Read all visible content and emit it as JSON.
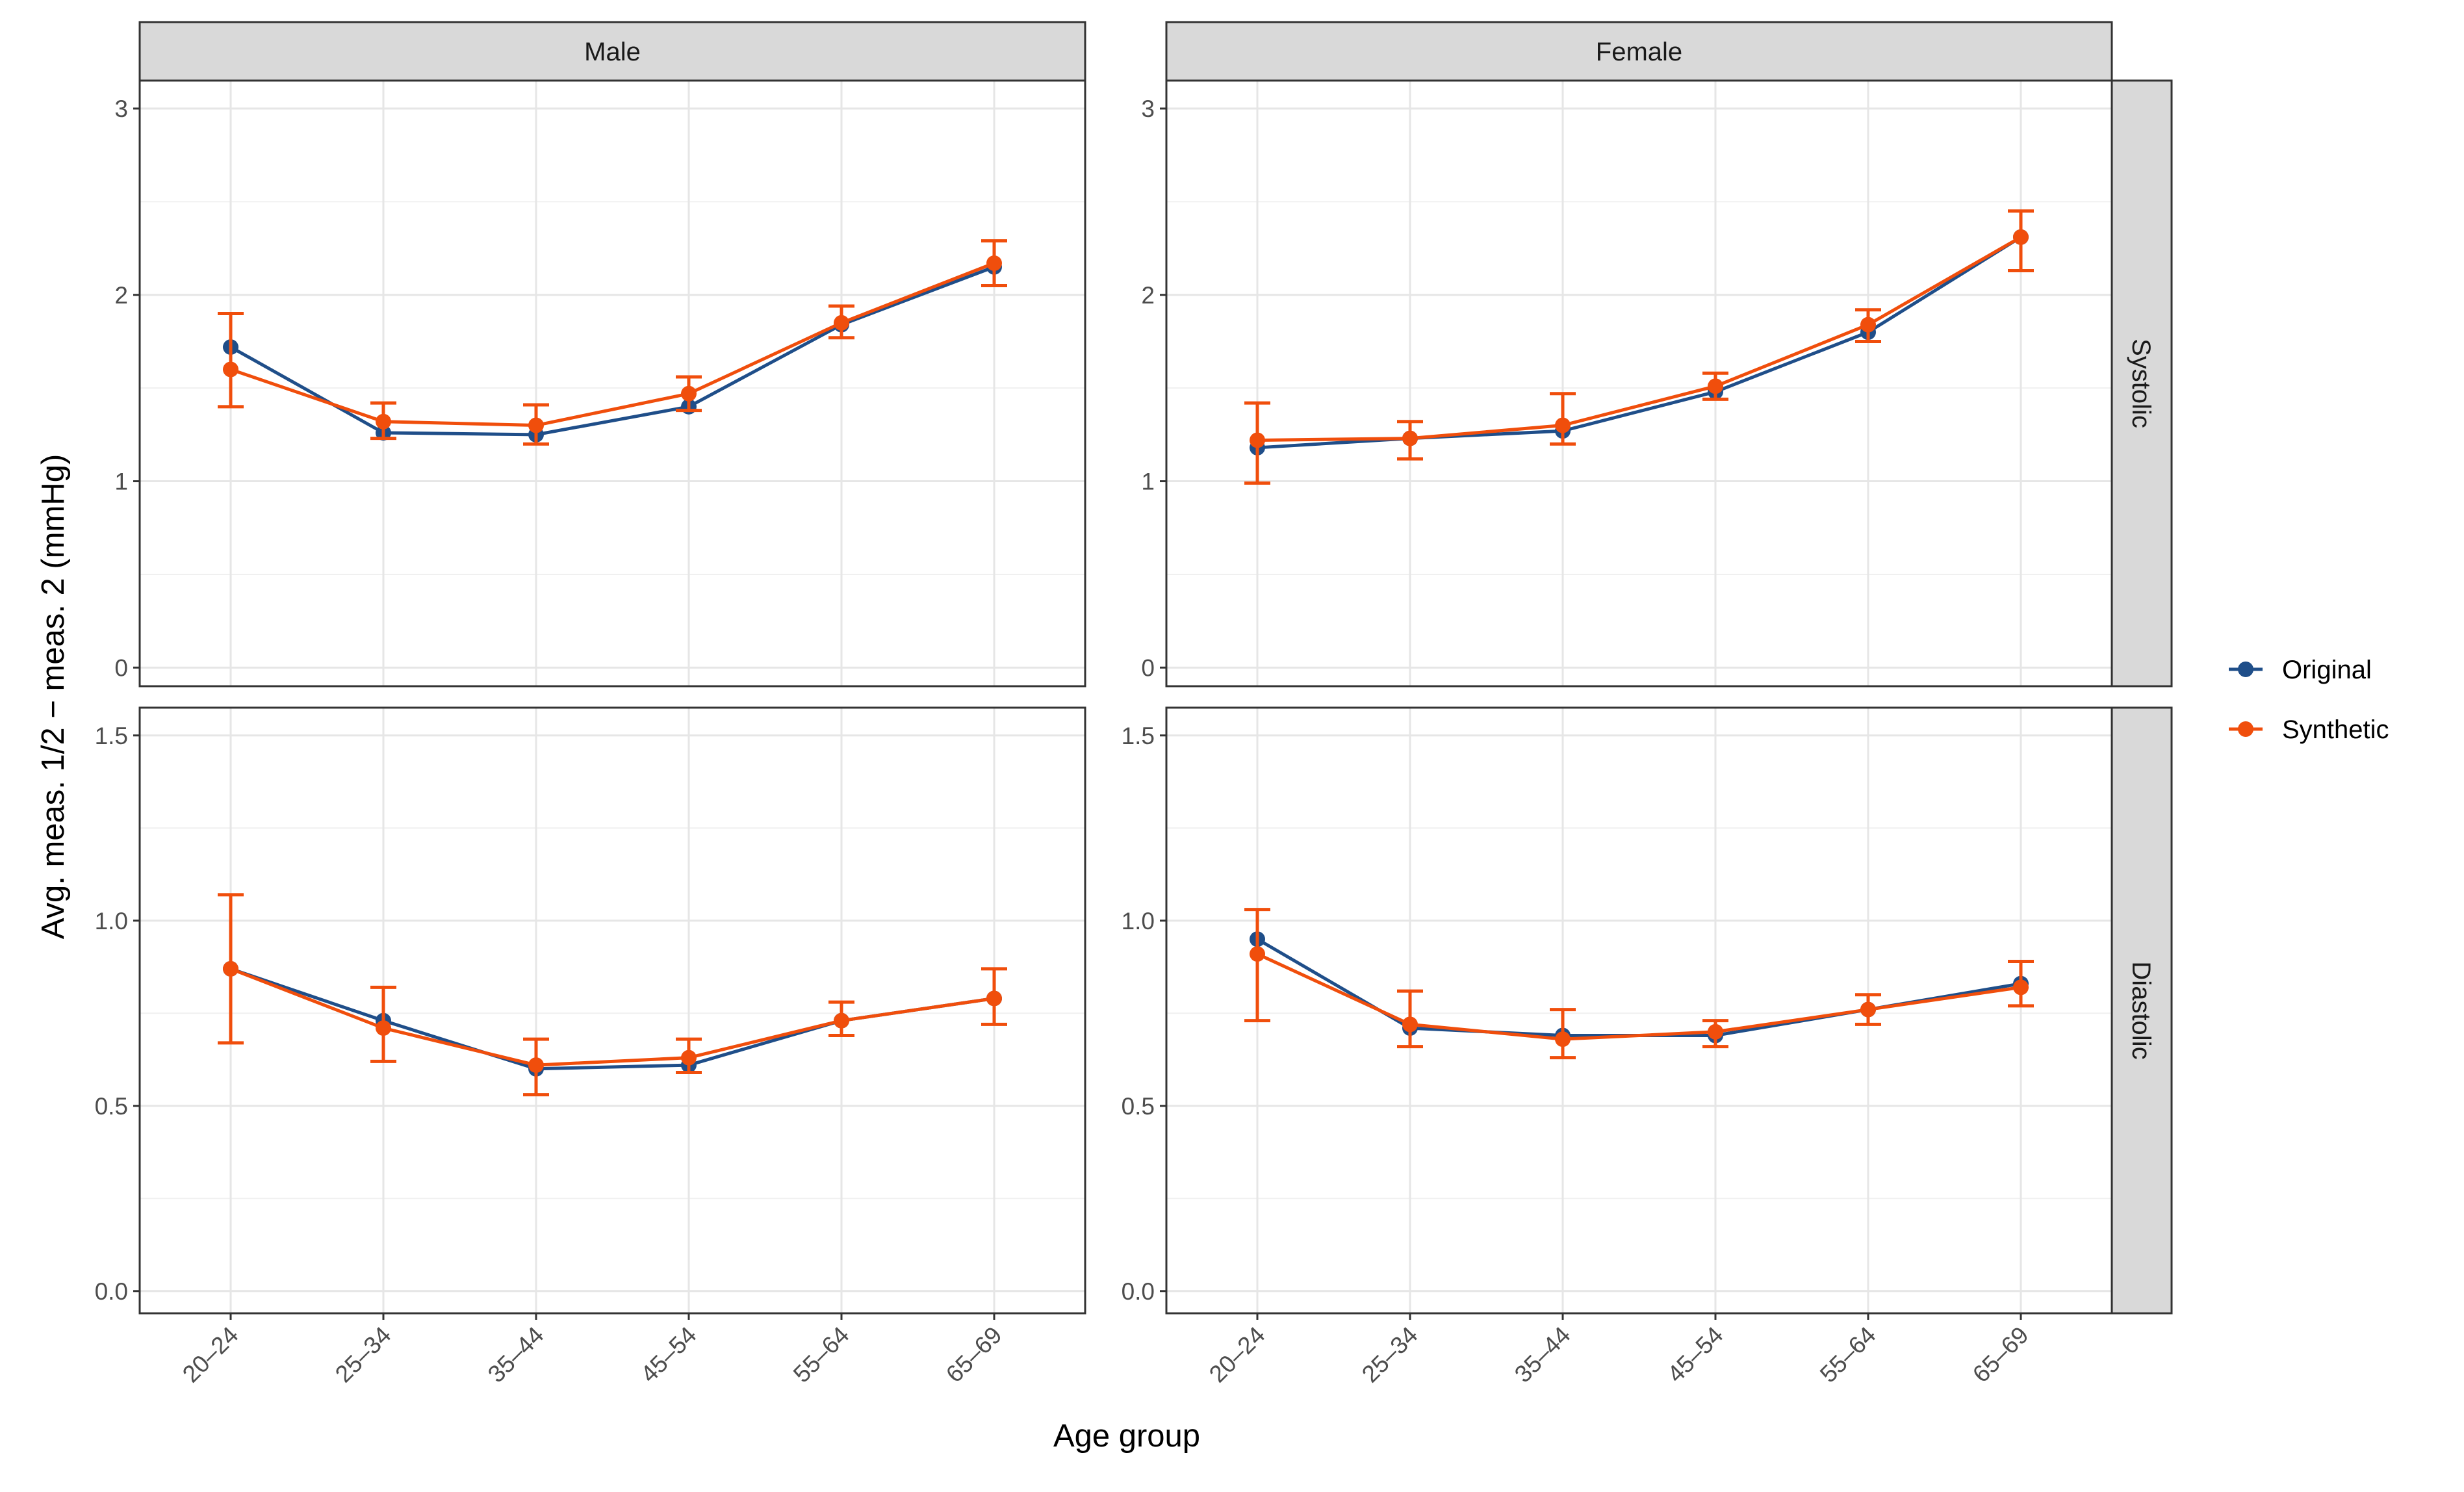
{
  "chart_data": {
    "type": "line",
    "title": "",
    "xlabel": "Age group",
    "ylabel": "Avg. meas. 1/2 − meas. 2 (mmHg)",
    "categories": [
      "20–24",
      "25–34",
      "35–44",
      "45–54",
      "55–64",
      "65–69"
    ],
    "columns": [
      "Male",
      "Female"
    ],
    "rows": [
      "Systolic",
      "Diastolic"
    ],
    "legend": {
      "position": "right",
      "entries": [
        {
          "name": "Original",
          "color": "#1f4e89"
        },
        {
          "name": "Synthetic",
          "color": "#f04e0c"
        }
      ]
    },
    "grid": true,
    "row_axes": [
      {
        "row": "Systolic",
        "ylim": [
          -0.1,
          3.15
        ],
        "ticks": [
          "0",
          "1",
          "2",
          "3"
        ],
        "tick_values": [
          0,
          1,
          2,
          3
        ]
      },
      {
        "row": "Diastolic",
        "ylim": [
          -0.06,
          1.575
        ],
        "ticks": [
          "0.0",
          "0.5",
          "1.0",
          "1.5"
        ],
        "tick_values": [
          0,
          0.5,
          1.0,
          1.5
        ]
      }
    ],
    "panels": [
      {
        "column": "Male",
        "row": "Systolic",
        "series": [
          {
            "name": "Original",
            "values": [
              1.72,
              1.26,
              1.25,
              1.4,
              1.84,
              2.15
            ]
          },
          {
            "name": "Synthetic",
            "values": [
              1.6,
              1.32,
              1.3,
              1.47,
              1.85,
              2.17
            ],
            "error_low": [
              1.4,
              1.23,
              1.2,
              1.38,
              1.77,
              2.05
            ],
            "error_high": [
              1.9,
              1.42,
              1.41,
              1.56,
              1.94,
              2.29
            ]
          }
        ]
      },
      {
        "column": "Female",
        "row": "Systolic",
        "series": [
          {
            "name": "Original",
            "values": [
              1.18,
              1.23,
              1.27,
              1.48,
              1.8,
              2.31
            ]
          },
          {
            "name": "Synthetic",
            "values": [
              1.22,
              1.23,
              1.3,
              1.51,
              1.84,
              2.31
            ],
            "error_low": [
              0.99,
              1.12,
              1.2,
              1.44,
              1.75,
              2.13
            ],
            "error_high": [
              1.42,
              1.32,
              1.47,
              1.58,
              1.92,
              2.45
            ]
          }
        ]
      },
      {
        "column": "Male",
        "row": "Diastolic",
        "series": [
          {
            "name": "Original",
            "values": [
              0.87,
              0.73,
              0.6,
              0.61,
              0.73,
              0.79
            ]
          },
          {
            "name": "Synthetic",
            "values": [
              0.87,
              0.71,
              0.61,
              0.63,
              0.73,
              0.79
            ],
            "error_low": [
              0.67,
              0.62,
              0.53,
              0.59,
              0.69,
              0.72
            ],
            "error_high": [
              1.07,
              0.82,
              0.68,
              0.68,
              0.78,
              0.87
            ]
          }
        ]
      },
      {
        "column": "Female",
        "row": "Diastolic",
        "series": [
          {
            "name": "Original",
            "values": [
              0.95,
              0.71,
              0.69,
              0.69,
              0.76,
              0.83
            ]
          },
          {
            "name": "Synthetic",
            "values": [
              0.91,
              0.72,
              0.68,
              0.7,
              0.76,
              0.82
            ],
            "error_low": [
              0.73,
              0.66,
              0.63,
              0.66,
              0.72,
              0.77
            ],
            "error_high": [
              1.03,
              0.81,
              0.76,
              0.73,
              0.8,
              0.89
            ]
          }
        ]
      }
    ]
  }
}
